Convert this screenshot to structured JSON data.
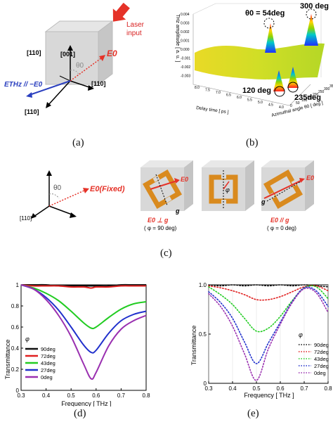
{
  "captions": {
    "a": "(a)",
    "b": "(b)",
    "c": "(c)",
    "d": "(d)",
    "e": "(e)"
  },
  "panel_a": {
    "laser_input": "Laser input",
    "label_001": "[001]",
    "label_110_left": "[110]",
    "label_110_right": "[110]",
    "label_110_bottom": "[110]",
    "theta0": "θ0",
    "E0": "E0",
    "ETHz": "ETHz // −E0",
    "colors": {
      "laser": "#e53228",
      "e0": "#e53228",
      "ethz": "#2a3fbf",
      "cube": "#d6d6d6"
    }
  },
  "panel_b": {
    "z_label": "THz amplitude [ a. u. ]",
    "x_label": "Delay time [ ps ]",
    "y_label": "Azimuthal angle  θ0 [ deg ]",
    "annotations": [
      "θ0 = 54deg",
      "300 deg",
      "120 deg",
      "235deg"
    ],
    "z_ticks": [
      "0.004",
      "0.003",
      "0.002",
      "0.001",
      "0.000",
      "-0.001",
      "-0.002",
      "-0.003"
    ],
    "x_ticks": [
      "8.0",
      "7.5",
      "7.0",
      "6.5",
      "6.0",
      "5.5",
      "5.0",
      "4.5",
      "4.0"
    ],
    "y_ticks": [
      "0",
      "50",
      "100",
      "150",
      "200",
      "250",
      "300",
      "350"
    ]
  },
  "panel_c": {
    "theta0": "θ0",
    "E0_fixed": "E0(Fixed)",
    "label_110": "[110]",
    "phi": "φ",
    "g": "g",
    "E0": "E0",
    "cell1": {
      "line1": "E0 ⊥ g",
      "line2": "( φ = 90 deg)"
    },
    "cell3": {
      "line1": "E0 // g",
      "line2": "( φ = 0 deg)"
    },
    "colors": {
      "ring": "#d98a1e",
      "arrow": "#e53228"
    }
  },
  "panel_d": {
    "ylabel": "Transmittance",
    "xlabel": "Frequency [ THz ]",
    "phi": "φ",
    "x_ticks": [
      "0.3",
      "0.4",
      "0.5",
      "0.6",
      "0.7",
      "0.8"
    ],
    "y_ticks": [
      "0",
      "0.2",
      "0.4",
      "0.6",
      "0.8",
      "1"
    ]
  },
  "panel_e": {
    "ylabel": "Transmittance",
    "xlabel": "Frequency [ THz ]",
    "phi": "φ",
    "x_ticks": [
      "0.3",
      "0.4",
      "0.5",
      "0.6",
      "0.7",
      "0.8"
    ],
    "y_ticks": [
      "0",
      "0.5",
      "1.0"
    ]
  },
  "chart_data": [
    {
      "type": "line",
      "xlabel": "Frequency [ THz ]",
      "ylabel": "Transmittance",
      "xlim": [
        0.3,
        0.8
      ],
      "ylim": [
        0,
        1
      ],
      "legend_title": "φ",
      "legend_position": "bottom-left",
      "series": [
        {
          "name": "90deg",
          "color": "#111111",
          "x": [
            0.3,
            0.35,
            0.4,
            0.45,
            0.5,
            0.55,
            0.58,
            0.6,
            0.65,
            0.7,
            0.75,
            0.8
          ],
          "y": [
            1.0,
            1.0,
            1.0,
            0.99,
            0.99,
            0.99,
            0.99,
            0.99,
            0.99,
            1.0,
            1.0,
            1.0
          ]
        },
        {
          "name": "72deg",
          "color": "#e02020",
          "x": [
            0.3,
            0.35,
            0.4,
            0.45,
            0.5,
            0.55,
            0.58,
            0.6,
            0.65,
            0.7,
            0.75,
            0.8
          ],
          "y": [
            1.0,
            0.99,
            0.99,
            0.99,
            0.98,
            0.98,
            0.97,
            0.98,
            0.98,
            0.99,
            0.99,
            0.99
          ]
        },
        {
          "name": "43deg",
          "color": "#22cc22",
          "x": [
            0.3,
            0.35,
            0.4,
            0.45,
            0.5,
            0.55,
            0.58,
            0.6,
            0.65,
            0.7,
            0.75,
            0.8
          ],
          "y": [
            1.0,
            0.97,
            0.92,
            0.85,
            0.75,
            0.64,
            0.59,
            0.6,
            0.69,
            0.77,
            0.82,
            0.84
          ]
        },
        {
          "name": "27deg",
          "color": "#2030cc",
          "x": [
            0.3,
            0.35,
            0.4,
            0.45,
            0.5,
            0.55,
            0.58,
            0.6,
            0.65,
            0.7,
            0.75,
            0.8
          ],
          "y": [
            1.0,
            0.96,
            0.88,
            0.76,
            0.6,
            0.43,
            0.36,
            0.38,
            0.54,
            0.66,
            0.72,
            0.75
          ]
        },
        {
          "name": "0deg",
          "color": "#9a30b0",
          "x": [
            0.3,
            0.35,
            0.4,
            0.45,
            0.5,
            0.55,
            0.58,
            0.6,
            0.65,
            0.7,
            0.75,
            0.8
          ],
          "y": [
            1.0,
            0.96,
            0.86,
            0.71,
            0.51,
            0.25,
            0.11,
            0.17,
            0.42,
            0.58,
            0.66,
            0.71
          ]
        }
      ]
    },
    {
      "type": "line",
      "xlabel": "Frequency [ THz ]",
      "ylabel": "Transmittance",
      "xlim": [
        0.3,
        0.8
      ],
      "ylim": [
        0,
        1
      ],
      "legend_title": "φ",
      "legend_position": "bottom-right",
      "series": [
        {
          "name": "90deg",
          "color": "#111111",
          "x": [
            0.3,
            0.35,
            0.4,
            0.45,
            0.5,
            0.55,
            0.6,
            0.65,
            0.7,
            0.75,
            0.8
          ],
          "y": [
            1.0,
            0.99,
            1.0,
            0.99,
            1.0,
            0.99,
            1.0,
            0.99,
            1.0,
            0.99,
            0.98
          ]
        },
        {
          "name": "72deg",
          "color": "#e02020",
          "x": [
            0.3,
            0.35,
            0.4,
            0.45,
            0.5,
            0.55,
            0.6,
            0.65,
            0.7,
            0.75,
            0.8
          ],
          "y": [
            0.99,
            0.97,
            0.94,
            0.9,
            0.85,
            0.85,
            0.88,
            0.93,
            0.98,
            0.99,
            0.94
          ]
        },
        {
          "name": "43deg",
          "color": "#22cc22",
          "x": [
            0.3,
            0.35,
            0.4,
            0.45,
            0.5,
            0.55,
            0.6,
            0.65,
            0.7,
            0.75,
            0.8
          ],
          "y": [
            0.98,
            0.9,
            0.8,
            0.66,
            0.53,
            0.56,
            0.68,
            0.84,
            0.97,
            0.98,
            0.86
          ]
        },
        {
          "name": "27deg",
          "color": "#2030cc",
          "x": [
            0.3,
            0.35,
            0.4,
            0.45,
            0.5,
            0.55,
            0.6,
            0.65,
            0.7,
            0.75,
            0.8
          ],
          "y": [
            0.93,
            0.82,
            0.66,
            0.42,
            0.2,
            0.41,
            0.62,
            0.83,
            0.97,
            0.94,
            0.78
          ]
        },
        {
          "name": "0deg",
          "color": "#9a30b0",
          "x": [
            0.3,
            0.35,
            0.4,
            0.45,
            0.5,
            0.55,
            0.6,
            0.65,
            0.7,
            0.75,
            0.8
          ],
          "y": [
            0.91,
            0.78,
            0.58,
            0.3,
            0.03,
            0.35,
            0.6,
            0.82,
            0.96,
            0.92,
            0.72
          ]
        }
      ]
    }
  ]
}
